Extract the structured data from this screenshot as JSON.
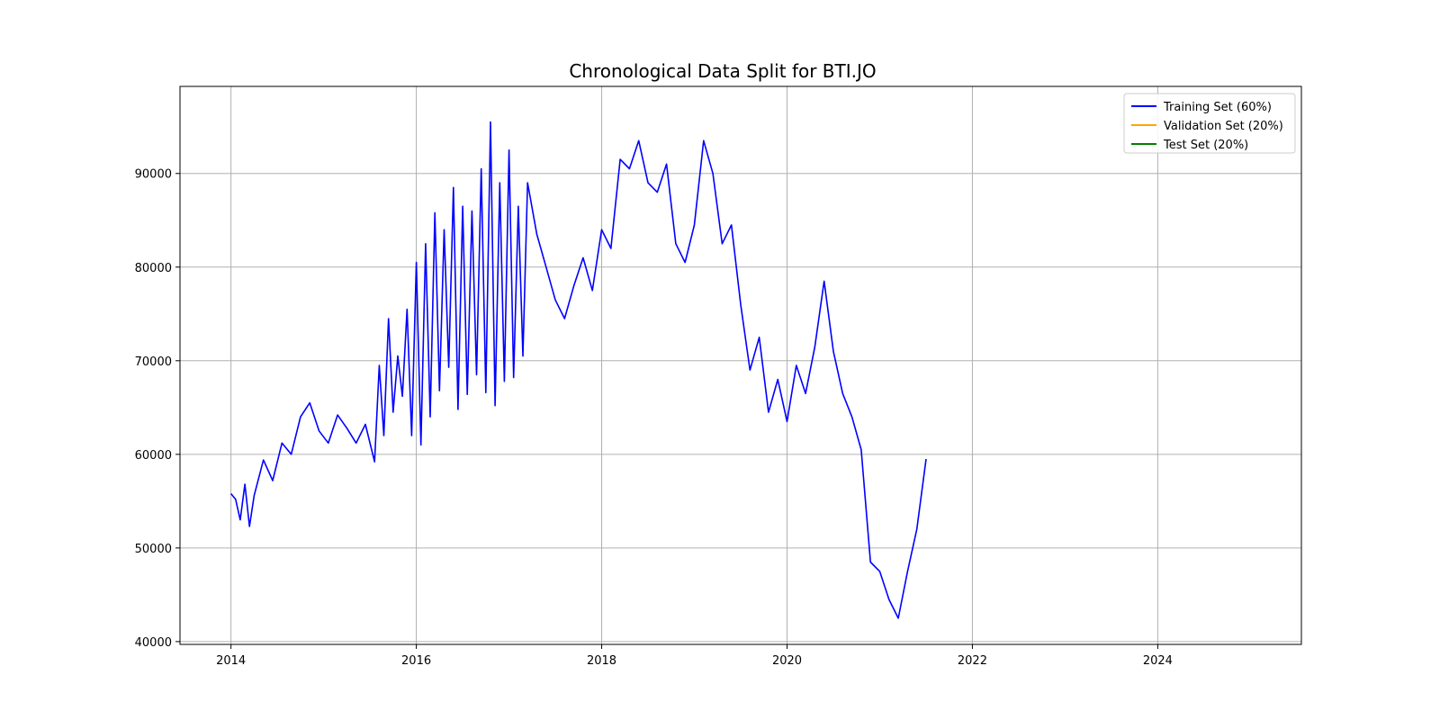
{
  "chart_data": {
    "type": "line",
    "title": "Chronological Data Split for BTI.JO",
    "xlabel": "",
    "ylabel": "",
    "xlim": [
      2013.45,
      2025.55
    ],
    "ylim": [
      39700,
      99300
    ],
    "x_ticks": [
      2014,
      2016,
      2018,
      2020,
      2022,
      2024
    ],
    "x_tick_labels": [
      "2014",
      "2016",
      "2018",
      "2020",
      "2022",
      "2024"
    ],
    "y_ticks": [
      40000,
      50000,
      60000,
      70000,
      80000,
      90000
    ],
    "y_tick_labels": [
      "40000",
      "50000",
      "60000",
      "70000",
      "80000",
      "90000"
    ],
    "grid": true,
    "legend_position": "top-right",
    "series": [
      {
        "name": "Training Set (60%)",
        "color": "#0000ff",
        "points": [
          [
            2014.0,
            55800
          ],
          [
            2014.05,
            55200
          ],
          [
            2014.1,
            53000
          ],
          [
            2014.15,
            56800
          ],
          [
            2014.2,
            52300
          ],
          [
            2014.25,
            55600
          ],
          [
            2014.35,
            59400
          ],
          [
            2014.45,
            57200
          ],
          [
            2014.55,
            61200
          ],
          [
            2014.65,
            60000
          ],
          [
            2014.75,
            64000
          ],
          [
            2014.85,
            65500
          ],
          [
            2014.95,
            62500
          ],
          [
            2015.05,
            61200
          ],
          [
            2015.15,
            64200
          ],
          [
            2015.25,
            62800
          ],
          [
            2015.35,
            61200
          ],
          [
            2015.45,
            63200
          ],
          [
            2015.55,
            59200
          ],
          [
            2015.65,
            62000
          ],
          [
            2015.75,
            64500
          ],
          [
            2015.85,
            66200
          ],
          [
            2015.95,
            62000
          ],
          [
            2016.05,
            61000
          ],
          [
            2016.15,
            64000
          ],
          [
            2016.25,
            66800
          ],
          [
            2016.35,
            69300
          ],
          [
            2016.45,
            64800
          ],
          [
            2016.55,
            66400
          ],
          [
            2016.65,
            68500
          ],
          [
            2016.75,
            66600
          ],
          [
            2016.85,
            65200
          ],
          [
            2016.95,
            67800
          ],
          [
            2017.05,
            68200
          ],
          [
            2017.15,
            70500
          ],
          [
            2015.6,
            69500
          ],
          [
            2015.7,
            74500
          ],
          [
            2015.8,
            70500
          ],
          [
            2015.9,
            75500
          ],
          [
            2016.0,
            80500
          ],
          [
            2016.1,
            82500
          ],
          [
            2016.2,
            85800
          ],
          [
            2016.3,
            84000
          ],
          [
            2016.4,
            88500
          ],
          [
            2016.5,
            86500
          ],
          [
            2016.6,
            86000
          ],
          [
            2016.7,
            90500
          ],
          [
            2016.8,
            95500
          ],
          [
            2016.9,
            89000
          ],
          [
            2017.0,
            92500
          ],
          [
            2017.1,
            86500
          ],
          [
            2017.2,
            89000
          ],
          [
            2017.3,
            83500
          ],
          [
            2017.4,
            80000
          ],
          [
            2017.5,
            76500
          ],
          [
            2017.6,
            74500
          ],
          [
            2017.7,
            78000
          ],
          [
            2017.8,
            81000
          ],
          [
            2017.9,
            77500
          ],
          [
            2018.0,
            84000
          ],
          [
            2018.1,
            82000
          ],
          [
            2018.2,
            91500
          ],
          [
            2018.3,
            90500
          ],
          [
            2018.4,
            93500
          ],
          [
            2018.5,
            89000
          ],
          [
            2018.6,
            88000
          ],
          [
            2018.7,
            91000
          ],
          [
            2018.8,
            82500
          ],
          [
            2018.9,
            80500
          ],
          [
            2019.0,
            84500
          ],
          [
            2019.1,
            93500
          ],
          [
            2019.2,
            90000
          ],
          [
            2019.3,
            82500
          ],
          [
            2019.4,
            84500
          ],
          [
            2019.5,
            76000
          ],
          [
            2019.6,
            69000
          ],
          [
            2019.7,
            72500
          ],
          [
            2019.8,
            64500
          ],
          [
            2019.9,
            68000
          ],
          [
            2020.0,
            63500
          ],
          [
            2020.1,
            69500
          ],
          [
            2020.2,
            66500
          ],
          [
            2020.3,
            71500
          ],
          [
            2020.4,
            78500
          ],
          [
            2020.5,
            71000
          ],
          [
            2020.6,
            66500
          ],
          [
            2020.7,
            64000
          ],
          [
            2020.8,
            60500
          ],
          [
            2020.9,
            48500
          ],
          [
            2021.0,
            47500
          ],
          [
            2021.1,
            44500
          ],
          [
            2021.2,
            42500
          ],
          [
            2021.3,
            47500
          ],
          [
            2021.4,
            52000
          ],
          [
            2021.5,
            59500
          ]
        ]
      },
      {
        "name": "Validation Set (20%)",
        "color": "#ffa500",
        "points": []
      },
      {
        "name": "Test Set (20%)",
        "color": "#008000",
        "points": []
      }
    ]
  }
}
